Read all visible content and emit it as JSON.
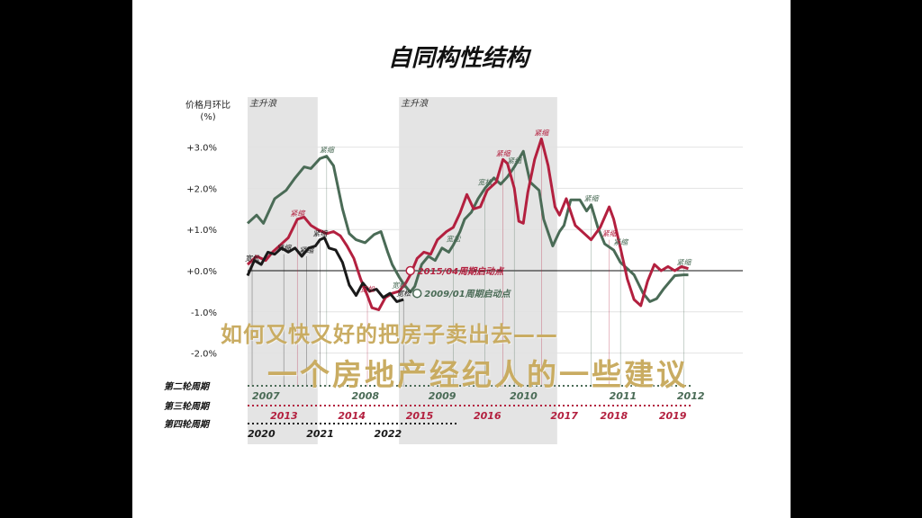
{
  "title": "自同构性结构",
  "overlay": {
    "line1": "如何又快又好的把房子卖出去——",
    "line2": "一个房地产经纪人的一些建议"
  },
  "colors": {
    "green": "#4a6b56",
    "red": "#b3203f",
    "black": "#1a1a1a",
    "shade": "#e4e4e4",
    "overlay": "#c9ac62"
  },
  "chart_data": {
    "type": "line",
    "ylabel": "价格月环比",
    "yunit": "(%)",
    "ylim": [
      -2.2,
      3.4
    ],
    "yticks": [
      {
        "v": 3,
        "label": "+3.0%"
      },
      {
        "v": 2,
        "label": "+2.0%"
      },
      {
        "v": 1,
        "label": "+1.0%"
      },
      {
        "v": 0,
        "label": "+0.0%"
      },
      {
        "v": -1,
        "label": "-1.0%"
      },
      {
        "v": -2,
        "label": "-2.0%"
      }
    ],
    "grid": true,
    "shaded_regions": [
      {
        "label": "主升浪",
        "x0": 0.0,
        "x1": 0.155
      },
      {
        "label": "主升浪",
        "x0": 0.335,
        "x1": 0.685
      }
    ],
    "series": [
      {
        "name": "第二轮周期",
        "color": "green",
        "points": [
          [
            0.0,
            1.15
          ],
          [
            0.02,
            1.35
          ],
          [
            0.035,
            1.15
          ],
          [
            0.06,
            1.75
          ],
          [
            0.085,
            1.95
          ],
          [
            0.105,
            2.25
          ],
          [
            0.125,
            2.52
          ],
          [
            0.14,
            2.48
          ],
          [
            0.16,
            2.72
          ],
          [
            0.175,
            2.78
          ],
          [
            0.19,
            2.55
          ],
          [
            0.21,
            1.5
          ],
          [
            0.225,
            0.9
          ],
          [
            0.24,
            0.75
          ],
          [
            0.26,
            0.68
          ],
          [
            0.28,
            0.88
          ],
          [
            0.295,
            0.95
          ],
          [
            0.31,
            0.45
          ],
          [
            0.32,
            0.15
          ],
          [
            0.335,
            -0.15
          ],
          [
            0.345,
            -0.32
          ],
          [
            0.36,
            -0.52
          ],
          [
            0.37,
            -0.38
          ],
          [
            0.385,
            0.15
          ],
          [
            0.4,
            0.35
          ],
          [
            0.415,
            0.25
          ],
          [
            0.43,
            0.55
          ],
          [
            0.445,
            0.45
          ],
          [
            0.455,
            0.62
          ],
          [
            0.47,
            0.95
          ],
          [
            0.48,
            1.25
          ],
          [
            0.495,
            1.42
          ],
          [
            0.51,
            1.75
          ],
          [
            0.525,
            2.0
          ],
          [
            0.545,
            2.25
          ],
          [
            0.56,
            2.1
          ],
          [
            0.575,
            2.28
          ],
          [
            0.59,
            2.52
          ],
          [
            0.61,
            2.9
          ],
          [
            0.625,
            2.15
          ],
          [
            0.635,
            2.05
          ],
          [
            0.645,
            1.95
          ],
          [
            0.655,
            1.25
          ],
          [
            0.675,
            0.6
          ],
          [
            0.69,
            0.95
          ],
          [
            0.7,
            1.1
          ],
          [
            0.715,
            1.72
          ],
          [
            0.735,
            1.72
          ],
          [
            0.75,
            1.45
          ],
          [
            0.76,
            1.6
          ],
          [
            0.775,
            1.05
          ],
          [
            0.79,
            0.65
          ],
          [
            0.81,
            0.5
          ],
          [
            0.825,
            0.2
          ],
          [
            0.84,
            0.05
          ],
          [
            0.855,
            -0.1
          ],
          [
            0.875,
            -0.55
          ],
          [
            0.89,
            -0.75
          ],
          [
            0.905,
            -0.68
          ],
          [
            0.92,
            -0.45
          ],
          [
            0.945,
            -0.12
          ],
          [
            0.965,
            -0.1
          ],
          [
            0.975,
            -0.1
          ]
        ]
      },
      {
        "name": "第三轮周期",
        "color": "red",
        "points": [
          [
            0.0,
            0.15
          ],
          [
            0.02,
            0.35
          ],
          [
            0.04,
            0.25
          ],
          [
            0.055,
            0.45
          ],
          [
            0.075,
            0.65
          ],
          [
            0.09,
            0.8
          ],
          [
            0.11,
            1.25
          ],
          [
            0.125,
            1.3
          ],
          [
            0.14,
            1.1
          ],
          [
            0.155,
            1.0
          ],
          [
            0.175,
            0.9
          ],
          [
            0.19,
            0.95
          ],
          [
            0.205,
            0.85
          ],
          [
            0.22,
            0.6
          ],
          [
            0.235,
            0.3
          ],
          [
            0.25,
            -0.2
          ],
          [
            0.265,
            -0.6
          ],
          [
            0.275,
            -0.9
          ],
          [
            0.29,
            -0.95
          ],
          [
            0.305,
            -0.65
          ],
          [
            0.32,
            -0.55
          ],
          [
            0.335,
            -0.5
          ],
          [
            0.35,
            -0.3
          ],
          [
            0.36,
            -0.1
          ],
          [
            0.375,
            0.3
          ],
          [
            0.39,
            0.45
          ],
          [
            0.405,
            0.4
          ],
          [
            0.42,
            0.75
          ],
          [
            0.44,
            0.95
          ],
          [
            0.455,
            1.05
          ],
          [
            0.47,
            1.4
          ],
          [
            0.485,
            1.85
          ],
          [
            0.5,
            1.5
          ],
          [
            0.515,
            1.55
          ],
          [
            0.53,
            1.95
          ],
          [
            0.55,
            2.15
          ],
          [
            0.565,
            2.7
          ],
          [
            0.575,
            2.6
          ],
          [
            0.59,
            2.0
          ],
          [
            0.6,
            1.2
          ],
          [
            0.61,
            1.15
          ],
          [
            0.62,
            1.9
          ],
          [
            0.635,
            2.7
          ],
          [
            0.65,
            3.2
          ],
          [
            0.665,
            2.55
          ],
          [
            0.68,
            1.55
          ],
          [
            0.69,
            1.35
          ],
          [
            0.705,
            1.75
          ],
          [
            0.725,
            1.1
          ],
          [
            0.745,
            0.9
          ],
          [
            0.76,
            0.75
          ],
          [
            0.78,
            1.05
          ],
          [
            0.8,
            1.55
          ],
          [
            0.81,
            1.25
          ],
          [
            0.825,
            0.55
          ],
          [
            0.84,
            -0.2
          ],
          [
            0.855,
            -0.7
          ],
          [
            0.87,
            -0.85
          ],
          [
            0.885,
            -0.25
          ],
          [
            0.9,
            0.15
          ],
          [
            0.915,
            0.0
          ],
          [
            0.93,
            0.1
          ],
          [
            0.945,
            0.0
          ],
          [
            0.96,
            0.1
          ],
          [
            0.975,
            0.05
          ]
        ]
      },
      {
        "name": "第四轮周期",
        "color": "black",
        "points": [
          [
            0.0,
            -0.12
          ],
          [
            0.015,
            0.25
          ],
          [
            0.03,
            0.15
          ],
          [
            0.045,
            0.45
          ],
          [
            0.06,
            0.4
          ],
          [
            0.075,
            0.55
          ],
          [
            0.09,
            0.45
          ],
          [
            0.105,
            0.55
          ],
          [
            0.12,
            0.35
          ],
          [
            0.135,
            0.55
          ],
          [
            0.15,
            0.6
          ],
          [
            0.16,
            0.75
          ],
          [
            0.17,
            0.8
          ],
          [
            0.18,
            0.55
          ],
          [
            0.195,
            0.5
          ],
          [
            0.21,
            0.2
          ],
          [
            0.225,
            -0.35
          ],
          [
            0.24,
            -0.6
          ],
          [
            0.255,
            -0.3
          ],
          [
            0.27,
            -0.5
          ],
          [
            0.285,
            -0.45
          ],
          [
            0.3,
            -0.65
          ],
          [
            0.315,
            -0.55
          ],
          [
            0.33,
            -0.75
          ],
          [
            0.345,
            -0.7
          ]
        ]
      }
    ],
    "annotations": [
      {
        "text": "紧缩",
        "x": 0.175,
        "y": 2.78,
        "series": "green"
      },
      {
        "text": "紧缩",
        "x": 0.11,
        "y": 1.25,
        "series": "red"
      },
      {
        "text": "紧缩",
        "x": 0.08,
        "y": 0.4,
        "series": "black"
      },
      {
        "text": "紧缩",
        "x": 0.13,
        "y": 0.35,
        "series": "black"
      },
      {
        "text": "紧缩",
        "x": 0.16,
        "y": 0.75,
        "series": "black"
      },
      {
        "text": "宽松",
        "x": 0.01,
        "y": 0.15,
        "series": "black"
      },
      {
        "text": "宽松",
        "x": 0.265,
        "y": -0.6,
        "series": "red"
      },
      {
        "text": "宽松",
        "x": 0.335,
        "y": -0.5,
        "series": "green"
      },
      {
        "text": "宽松",
        "x": 0.345,
        "y": -0.7,
        "series": "black"
      },
      {
        "text": "宽松",
        "x": 0.455,
        "y": 0.62,
        "series": "green"
      },
      {
        "text": "宽松",
        "x": 0.525,
        "y": 2.0,
        "series": "green"
      },
      {
        "text": "紧缩",
        "x": 0.565,
        "y": 2.7,
        "series": "red"
      },
      {
        "text": "紧缩",
        "x": 0.59,
        "y": 2.52,
        "series": "green"
      },
      {
        "text": "紧缩",
        "x": 0.65,
        "y": 3.2,
        "series": "red"
      },
      {
        "text": "紧缩",
        "x": 0.76,
        "y": 1.6,
        "series": "green"
      },
      {
        "text": "紧缩",
        "x": 0.8,
        "y": 0.75,
        "series": "red"
      },
      {
        "text": "紧缩",
        "x": 0.825,
        "y": 0.55,
        "series": "green"
      },
      {
        "text": "紧缩",
        "x": 0.965,
        "y": 0.05,
        "series": "green"
      }
    ],
    "start_points": [
      {
        "text": "2015/04周期启动点",
        "x": 0.36,
        "y": 0.0,
        "series": "red"
      },
      {
        "text": "2009/01周期启动点",
        "x": 0.375,
        "y": -0.55,
        "series": "green"
      }
    ],
    "timeline": [
      {
        "label": "第二轮周期",
        "color": "green",
        "years": [
          {
            "t": "2007",
            "x": 0.01
          },
          {
            "t": "2008",
            "x": 0.23
          },
          {
            "t": "2009",
            "x": 0.4
          },
          {
            "t": "2010",
            "x": 0.58
          },
          {
            "t": "2011",
            "x": 0.8
          },
          {
            "t": "2012",
            "x": 0.95
          }
        ]
      },
      {
        "label": "第三轮周期",
        "color": "red",
        "years": [
          {
            "t": "2013",
            "x": 0.05
          },
          {
            "t": "2014",
            "x": 0.2
          },
          {
            "t": "2015",
            "x": 0.35
          },
          {
            "t": "2016",
            "x": 0.5
          },
          {
            "t": "2017",
            "x": 0.67
          },
          {
            "t": "2018",
            "x": 0.78
          },
          {
            "t": "2019",
            "x": 0.91
          }
        ]
      },
      {
        "label": "第四轮周期",
        "color": "black",
        "years": [
          {
            "t": "2020",
            "x": 0.0
          },
          {
            "t": "2021",
            "x": 0.13
          },
          {
            "t": "2022",
            "x": 0.28
          }
        ]
      }
    ]
  }
}
